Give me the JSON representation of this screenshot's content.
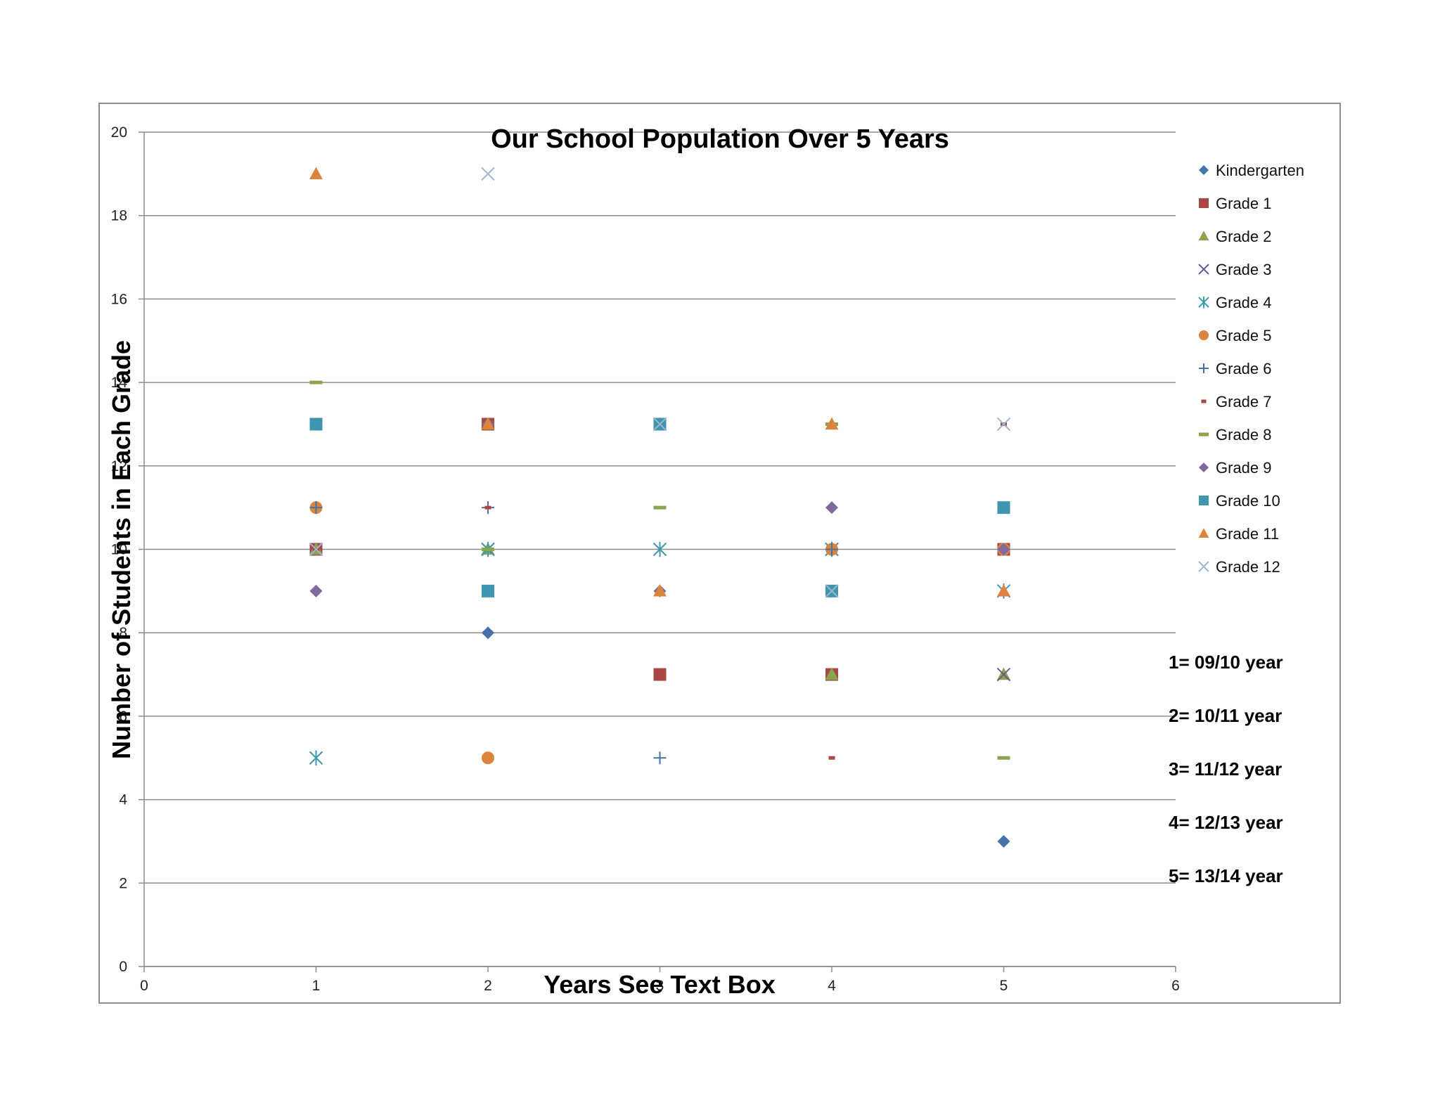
{
  "chart_data": {
    "type": "scatter",
    "title": "Our School Population Over 5 Years",
    "xlabel": "Years See Text Box",
    "ylabel": "Number of Students in Each Grade",
    "xlim": [
      0,
      6
    ],
    "ylim": [
      0,
      20
    ],
    "x_ticks": [
      "0",
      "1",
      "2",
      "3",
      "4",
      "5",
      "6"
    ],
    "y_ticks": [
      "0",
      "2",
      "4",
      "6",
      "8",
      "10",
      "12",
      "14",
      "16",
      "18",
      "20"
    ],
    "grid": "horizontal",
    "legend_position": "right",
    "x": [
      1,
      2,
      3,
      4,
      5
    ],
    "series": [
      {
        "name": "Kindergarten",
        "marker": "diamond",
        "color": "#4572A7",
        "values": [
          10,
          8,
          13,
          10,
          3
        ]
      },
      {
        "name": "Grade 1",
        "marker": "square",
        "color": "#AA4643",
        "values": [
          10,
          13,
          7,
          7,
          10
        ]
      },
      {
        "name": "Grade 2",
        "marker": "triangle",
        "color": "#89A54E",
        "values": [
          10,
          10,
          13,
          7,
          7
        ]
      },
      {
        "name": "Grade 3",
        "marker": "x",
        "color": "#71588F",
        "values": [
          10,
          10,
          13,
          10,
          7
        ]
      },
      {
        "name": "Grade 4",
        "marker": "star",
        "color": "#4198AF",
        "values": [
          5,
          10,
          10,
          10,
          9
        ]
      },
      {
        "name": "Grade 5",
        "marker": "circle",
        "color": "#DB843D",
        "values": [
          11,
          5,
          13,
          10,
          10
        ]
      },
      {
        "name": "Grade 6",
        "marker": "plus",
        "color": "#4572A7",
        "values": [
          11,
          11,
          5,
          10,
          10
        ]
      },
      {
        "name": "Grade 7",
        "marker": "dash",
        "color": "#AA4643",
        "values": [
          10,
          11,
          13,
          5,
          13
        ]
      },
      {
        "name": "Grade 8",
        "marker": "longdash",
        "color": "#89A54E",
        "values": [
          14,
          10,
          11,
          13,
          5
        ]
      },
      {
        "name": "Grade 9",
        "marker": "diamond",
        "color": "#80699B",
        "values": [
          9,
          13,
          9,
          11,
          10
        ]
      },
      {
        "name": "Grade 10",
        "marker": "square",
        "color": "#3D96AE",
        "values": [
          13,
          9,
          13,
          9,
          11
        ]
      },
      {
        "name": "Grade 11",
        "marker": "triangle",
        "color": "#DB843D",
        "values": [
          19,
          13,
          9,
          13,
          9
        ]
      },
      {
        "name": "Grade 12",
        "marker": "x",
        "color": "#A0B4D0",
        "values": [
          10,
          19,
          13,
          9,
          13
        ]
      }
    ]
  },
  "notes": [
    "1= 09/10 year",
    "2= 10/11 year",
    "3= 11/12 year",
    "4= 12/13 year",
    "5= 13/14 year"
  ]
}
